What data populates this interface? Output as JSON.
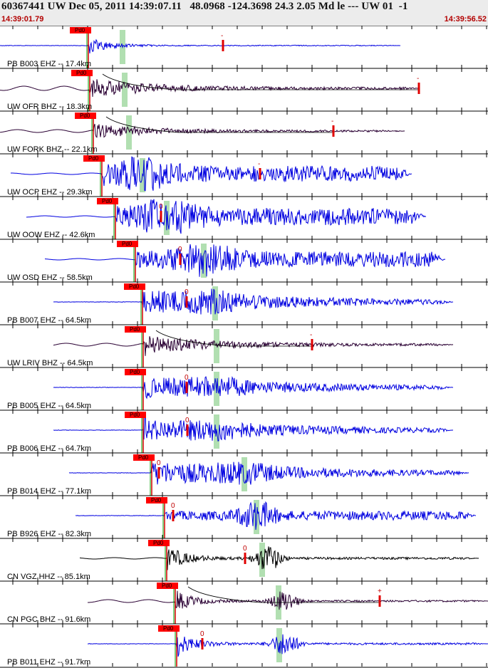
{
  "header": {
    "title": "60367441 UW Dec 05, 2011 14:39:07.11   48.0968 -124.3698 24.3 2.05 Md le --- UW 01  -1",
    "start_time": "14:39:01.79",
    "end_time": "14:39:56.52"
  },
  "pick_label": "Pd0",
  "colors": {
    "blue": "#0000e0",
    "dark": "#2a0033",
    "black": "#000000",
    "pick": "#ff0000",
    "green": "#a8dca8"
  },
  "traces": [
    {
      "label": "PB B003 EHZ -- 17.4km",
      "color": "#0000e0",
      "p": 124,
      "s": 172,
      "m": 313,
      "mt": "-",
      "amp": 12,
      "start": 0,
      "end": 562,
      "decay": "fast",
      "noise": 0
    },
    {
      "label": "UW OFR BHZ -- 18.3km",
      "color": "#2a0033",
      "p": 126,
      "s": 175,
      "m": 588,
      "mt": "-",
      "amp": 14,
      "start": 0,
      "end": 588,
      "decay": "slow",
      "noise": 3
    },
    {
      "label": "UW FORK BHZ -- 22.1km",
      "color": "#2a0033",
      "p": 131,
      "s": 181,
      "m": 468,
      "mt": "-",
      "amp": 10,
      "start": 0,
      "end": 568,
      "decay": "slow",
      "noise": 2
    },
    {
      "label": "UW OCP EHZ -- 29.3km",
      "color": "#0000e0",
      "p": 143,
      "s": 200,
      "m": 365,
      "mt": "-",
      "amp": 22,
      "start": 15,
      "end": 578,
      "decay": "mid",
      "noise": 1
    },
    {
      "label": "UW OOW EHZ -- 42.6km",
      "color": "#0000e0",
      "p": 162,
      "s": 234,
      "m": 226,
      "mt": "0",
      "amp": 24,
      "start": 37,
      "end": 598,
      "decay": "mid",
      "noise": 1
    },
    {
      "label": "UW OSD EHZ -- 58.5km",
      "color": "#0000e0",
      "p": 190,
      "s": 286,
      "m": 253,
      "mt": "0",
      "amp": 22,
      "start": 63,
      "end": 625,
      "decay": "mid",
      "noise": 1
    },
    {
      "label": "PB B007 EHZ -- 64.5km",
      "color": "#0000e0",
      "p": 200,
      "s": 302,
      "m": 262,
      "mt": "0",
      "amp": 20,
      "start": 75,
      "end": 636,
      "decay": "long",
      "noise": 0
    },
    {
      "label": "UW LRIV BHZ -- 64.5km",
      "color": "#2a0033",
      "p": 201,
      "s": 304,
      "m": 438,
      "mt": "-",
      "amp": 14,
      "start": 75,
      "end": 636,
      "decay": "slow",
      "noise": 2
    },
    {
      "label": "PB B005 EHZ -- 64.5km",
      "color": "#0000e0",
      "p": 201,
      "s": 304,
      "m": 262,
      "mt": "0",
      "amp": 18,
      "start": 75,
      "end": 636,
      "decay": "long",
      "noise": 0
    },
    {
      "label": "PB B006 EHZ -- 64.7km",
      "color": "#0000e0",
      "p": 201,
      "s": 304,
      "m": 263,
      "mt": "0",
      "amp": 18,
      "start": 75,
      "end": 636,
      "decay": "long",
      "noise": 0
    },
    {
      "label": "PB B014 EHZ -- 77.1km",
      "color": "#0000e0",
      "p": 213,
      "s": 343,
      "m": 223,
      "mt": "0",
      "amp": 20,
      "start": 97,
      "end": 658,
      "decay": "long",
      "noise": 0
    },
    {
      "label": "PB B926 EHZ -- 82.3km",
      "color": "#0000e0",
      "p": 231,
      "s": 360,
      "m": 243,
      "mt": "0",
      "amp": 18,
      "start": 106,
      "end": 668,
      "decay": "late",
      "noise": 0
    },
    {
      "label": "CN VGZ HHZ -- 85.1km",
      "color": "#000000",
      "p": 234,
      "s": 368,
      "m": 344,
      "mt": "0",
      "amp": 20,
      "start": 112,
      "end": 672,
      "decay": "twin",
      "noise": 1
    },
    {
      "label": "CN PGC BHZ -- 91.6km",
      "color": "#2a0033",
      "p": 246,
      "s": 391,
      "m": 533,
      "mt": "+",
      "amp": 16,
      "start": 123,
      "end": 685,
      "decay": "twin",
      "noise": 2
    },
    {
      "label": "PB B011 EHZ -- 91.7km",
      "color": "#0000e0",
      "p": 248,
      "s": 392,
      "m": 284,
      "mt": "0",
      "amp": 18,
      "start": 123,
      "end": 685,
      "decay": "twin",
      "noise": 0
    }
  ]
}
